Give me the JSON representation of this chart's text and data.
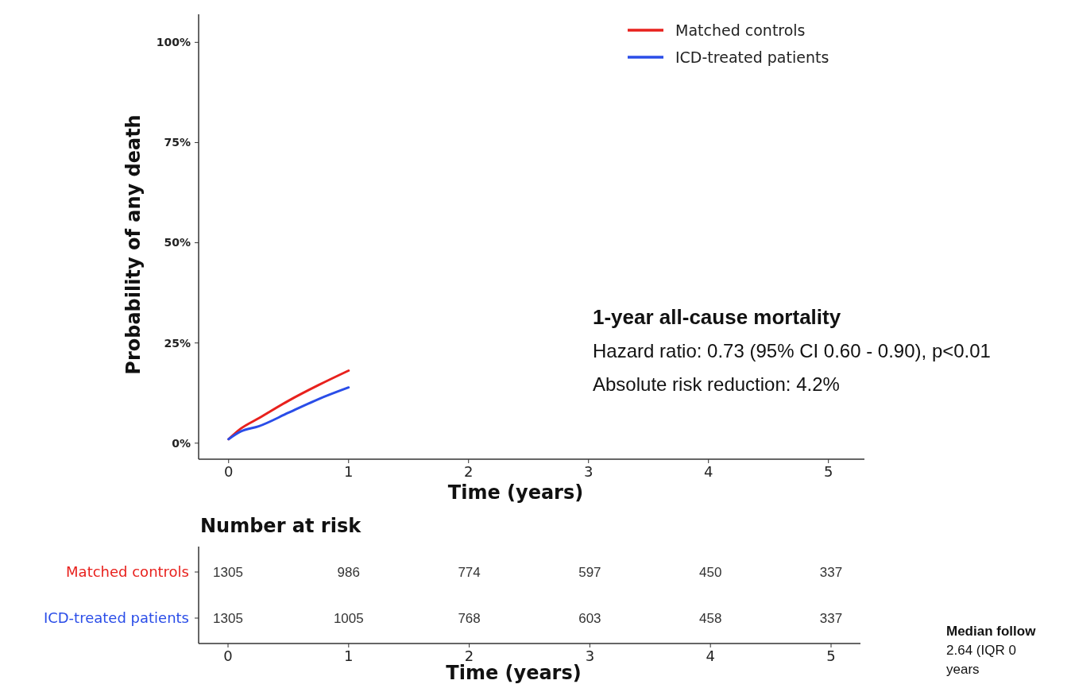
{
  "chart_data": [
    {
      "type": "line",
      "ylabel": "Probability of any death",
      "xlabel": "Time (years)",
      "x": [
        0,
        0.1,
        0.25,
        0.5,
        0.75,
        1
      ],
      "series": [
        {
          "name": "Matched controls",
          "color": "#e8211d",
          "values": [
            1.0,
            3.6,
            6.2,
            10.6,
            14.5,
            18.1
          ]
        },
        {
          "name": "ICD-treated patients",
          "color": "#2a4de8",
          "values": [
            1.0,
            2.9,
            4.2,
            7.6,
            11.0,
            13.9
          ]
        }
      ],
      "xlim": [
        -0.25,
        5.3
      ],
      "xticks": [
        0,
        1,
        2,
        3,
        4,
        5
      ],
      "ylim": [
        -4,
        107
      ],
      "yticks": [
        {
          "value": 0,
          "label": "0%"
        },
        {
          "value": 25,
          "label": "25%"
        },
        {
          "value": 50,
          "label": "50%"
        },
        {
          "value": 75,
          "label": "75%"
        },
        {
          "value": 100,
          "label": "100%"
        }
      ],
      "legend": "top right",
      "grid": false,
      "annotations": [
        "1-year all-cause mortality",
        "Hazard ratio: 0.73 (95% CI 0.60 - 0.90), p<0.01",
        "Absolute risk reduction: 4.2%"
      ]
    },
    {
      "type": "heatmap",
      "title": "Number at risk",
      "xlabel": "Time (years)",
      "categories": [
        "0",
        "1",
        "2",
        "3",
        "4",
        "5"
      ],
      "y_categories": [
        "Matched controls",
        "ICD-treated patients"
      ],
      "cells": [
        [
          1305,
          986,
          774,
          597,
          450,
          337
        ],
        [
          1305,
          1005,
          768,
          603,
          458,
          337
        ]
      ],
      "data_labels": true,
      "annotations": [
        "Median follow",
        "2.64 (IQR 0",
        "years"
      ]
    }
  ]
}
